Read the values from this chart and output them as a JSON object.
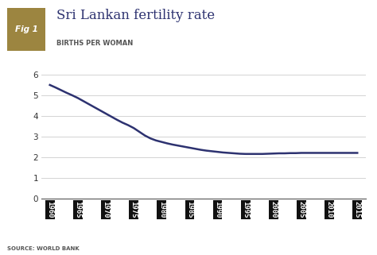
{
  "title": "Sri Lankan fertility rate",
  "subtitle": "BIRTHS PER WOMAN",
  "fig_label": "Fig 1",
  "fig_label_color": "#9c8540",
  "fig_label_text_color": "#ffffff",
  "source": "SOURCE: WORLD BANK",
  "line_color": "#2d3270",
  "line_width": 1.8,
  "background_color": "#ffffff",
  "plot_bg_color": "#ffffff",
  "title_color": "#2d3270",
  "subtitle_color": "#555555",
  "ylim": [
    0,
    6.4
  ],
  "yticks": [
    0,
    1,
    2,
    3,
    4,
    5,
    6
  ],
  "years": [
    1960,
    1961,
    1962,
    1963,
    1964,
    1965,
    1966,
    1967,
    1968,
    1969,
    1970,
    1971,
    1972,
    1973,
    1974,
    1975,
    1976,
    1977,
    1978,
    1979,
    1980,
    1981,
    1982,
    1983,
    1984,
    1985,
    1986,
    1987,
    1988,
    1989,
    1990,
    1991,
    1992,
    1993,
    1994,
    1995,
    1996,
    1997,
    1998,
    1999,
    2000,
    2001,
    2002,
    2003,
    2004,
    2005,
    2006,
    2007,
    2008,
    2009,
    2010,
    2011,
    2012,
    2013,
    2014,
    2015
  ],
  "values": [
    5.5,
    5.38,
    5.25,
    5.12,
    5.0,
    4.87,
    4.72,
    4.57,
    4.42,
    4.27,
    4.12,
    3.97,
    3.82,
    3.68,
    3.56,
    3.42,
    3.24,
    3.06,
    2.92,
    2.82,
    2.75,
    2.68,
    2.62,
    2.57,
    2.52,
    2.47,
    2.42,
    2.37,
    2.33,
    2.3,
    2.27,
    2.24,
    2.22,
    2.2,
    2.18,
    2.17,
    2.17,
    2.17,
    2.17,
    2.18,
    2.19,
    2.2,
    2.2,
    2.21,
    2.21,
    2.22,
    2.22,
    2.22,
    2.22,
    2.22,
    2.22,
    2.22,
    2.22,
    2.22,
    2.22,
    2.22
  ],
  "xtick_years": [
    1960,
    1965,
    1970,
    1975,
    1980,
    1985,
    1990,
    1995,
    2000,
    2005,
    2010,
    2015
  ],
  "grid_color": "#cccccc",
  "grid_linewidth": 0.6
}
